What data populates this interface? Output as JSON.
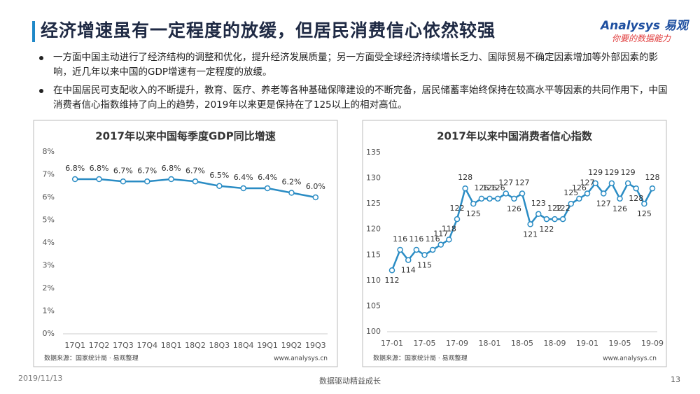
{
  "header": {
    "title": "经济增速虽有一定程度的放缓，但居民消费信心依然较强",
    "logo": "Analysys 易观",
    "slogan": "你要的数据能力"
  },
  "bullets": [
    "一方面中国主动进行了经济结构的调整和优化，提升经济发展质量；另一方面受全球经济持续增长乏力、国际贸易不确定因素增加等外部因素的影响，近几年以来中国的GDP增速有一定程度的放缓。",
    "在中国居民可支配收入的不断提升，教育、医疗、养老等各种基础保障建设的不断完备，居民储蓄率始终保持在较高水平等因素的共同作用下，中国消费者信心指数维持了向上的趋势，2019年以来更是保持在了125以上的相对高位。"
  ],
  "chart_data": [
    {
      "type": "line",
      "title": "2017年以来中国每季度GDP同比增速",
      "color": "#2a8cc4",
      "categories": [
        "17Q1",
        "17Q2",
        "17Q3",
        "17Q4",
        "18Q1",
        "18Q2",
        "18Q3",
        "18Q4",
        "19Q1",
        "19Q2",
        "19Q3"
      ],
      "values": [
        6.8,
        6.8,
        6.7,
        6.7,
        6.8,
        6.7,
        6.5,
        6.4,
        6.4,
        6.2,
        6.0
      ],
      "value_labels": [
        "6.8%",
        "6.8%",
        "6.7%",
        "6.7%",
        "6.8%",
        "6.7%",
        "6.5%",
        "6.4%",
        "6.4%",
        "6.2%",
        "6.0%"
      ],
      "ylim": [
        0,
        8
      ],
      "yticks": [
        {
          "value": 0,
          "label": "0%"
        },
        {
          "value": 1,
          "label": "1%"
        },
        {
          "value": 2,
          "label": "2%"
        },
        {
          "value": 3,
          "label": "3%"
        },
        {
          "value": 4,
          "label": "4%"
        },
        {
          "value": 5,
          "label": "5%"
        },
        {
          "value": 6,
          "label": "6%"
        },
        {
          "value": 7,
          "label": "7%"
        },
        {
          "value": 8,
          "label": "8%"
        }
      ],
      "source": "数据来源：国家统计局 · 易观整理",
      "website": "www.analysys.cn"
    },
    {
      "type": "line",
      "title": "2017年以来中国消费者信心指数",
      "color": "#2a8cc4",
      "categories": [
        "17-01",
        null,
        null,
        null,
        "17-05",
        null,
        null,
        null,
        "17-09",
        null,
        null,
        null,
        "18-01",
        null,
        null,
        null,
        "18-05",
        null,
        null,
        null,
        "18-09",
        null,
        null,
        null,
        "19-01",
        null,
        null,
        null,
        "19-05",
        null,
        null,
        null,
        "19-09"
      ],
      "values": [
        112,
        116,
        114,
        116,
        115,
        116,
        117,
        118,
        122,
        128,
        125,
        126,
        126,
        126,
        127,
        126,
        127,
        121,
        123,
        122,
        122,
        122,
        125,
        126,
        127,
        129,
        127,
        129,
        126,
        129,
        128,
        125,
        128
      ],
      "ylim": [
        100,
        135
      ],
      "yticks": [
        100,
        105,
        110,
        115,
        120,
        125,
        130,
        135
      ],
      "source": "数据来源：国家统计局 · 易观整理",
      "website": "www.analysys.cn"
    }
  ],
  "footer": {
    "date": "2019/11/13",
    "slogan": "数据驱动精益成长",
    "page": "13"
  }
}
